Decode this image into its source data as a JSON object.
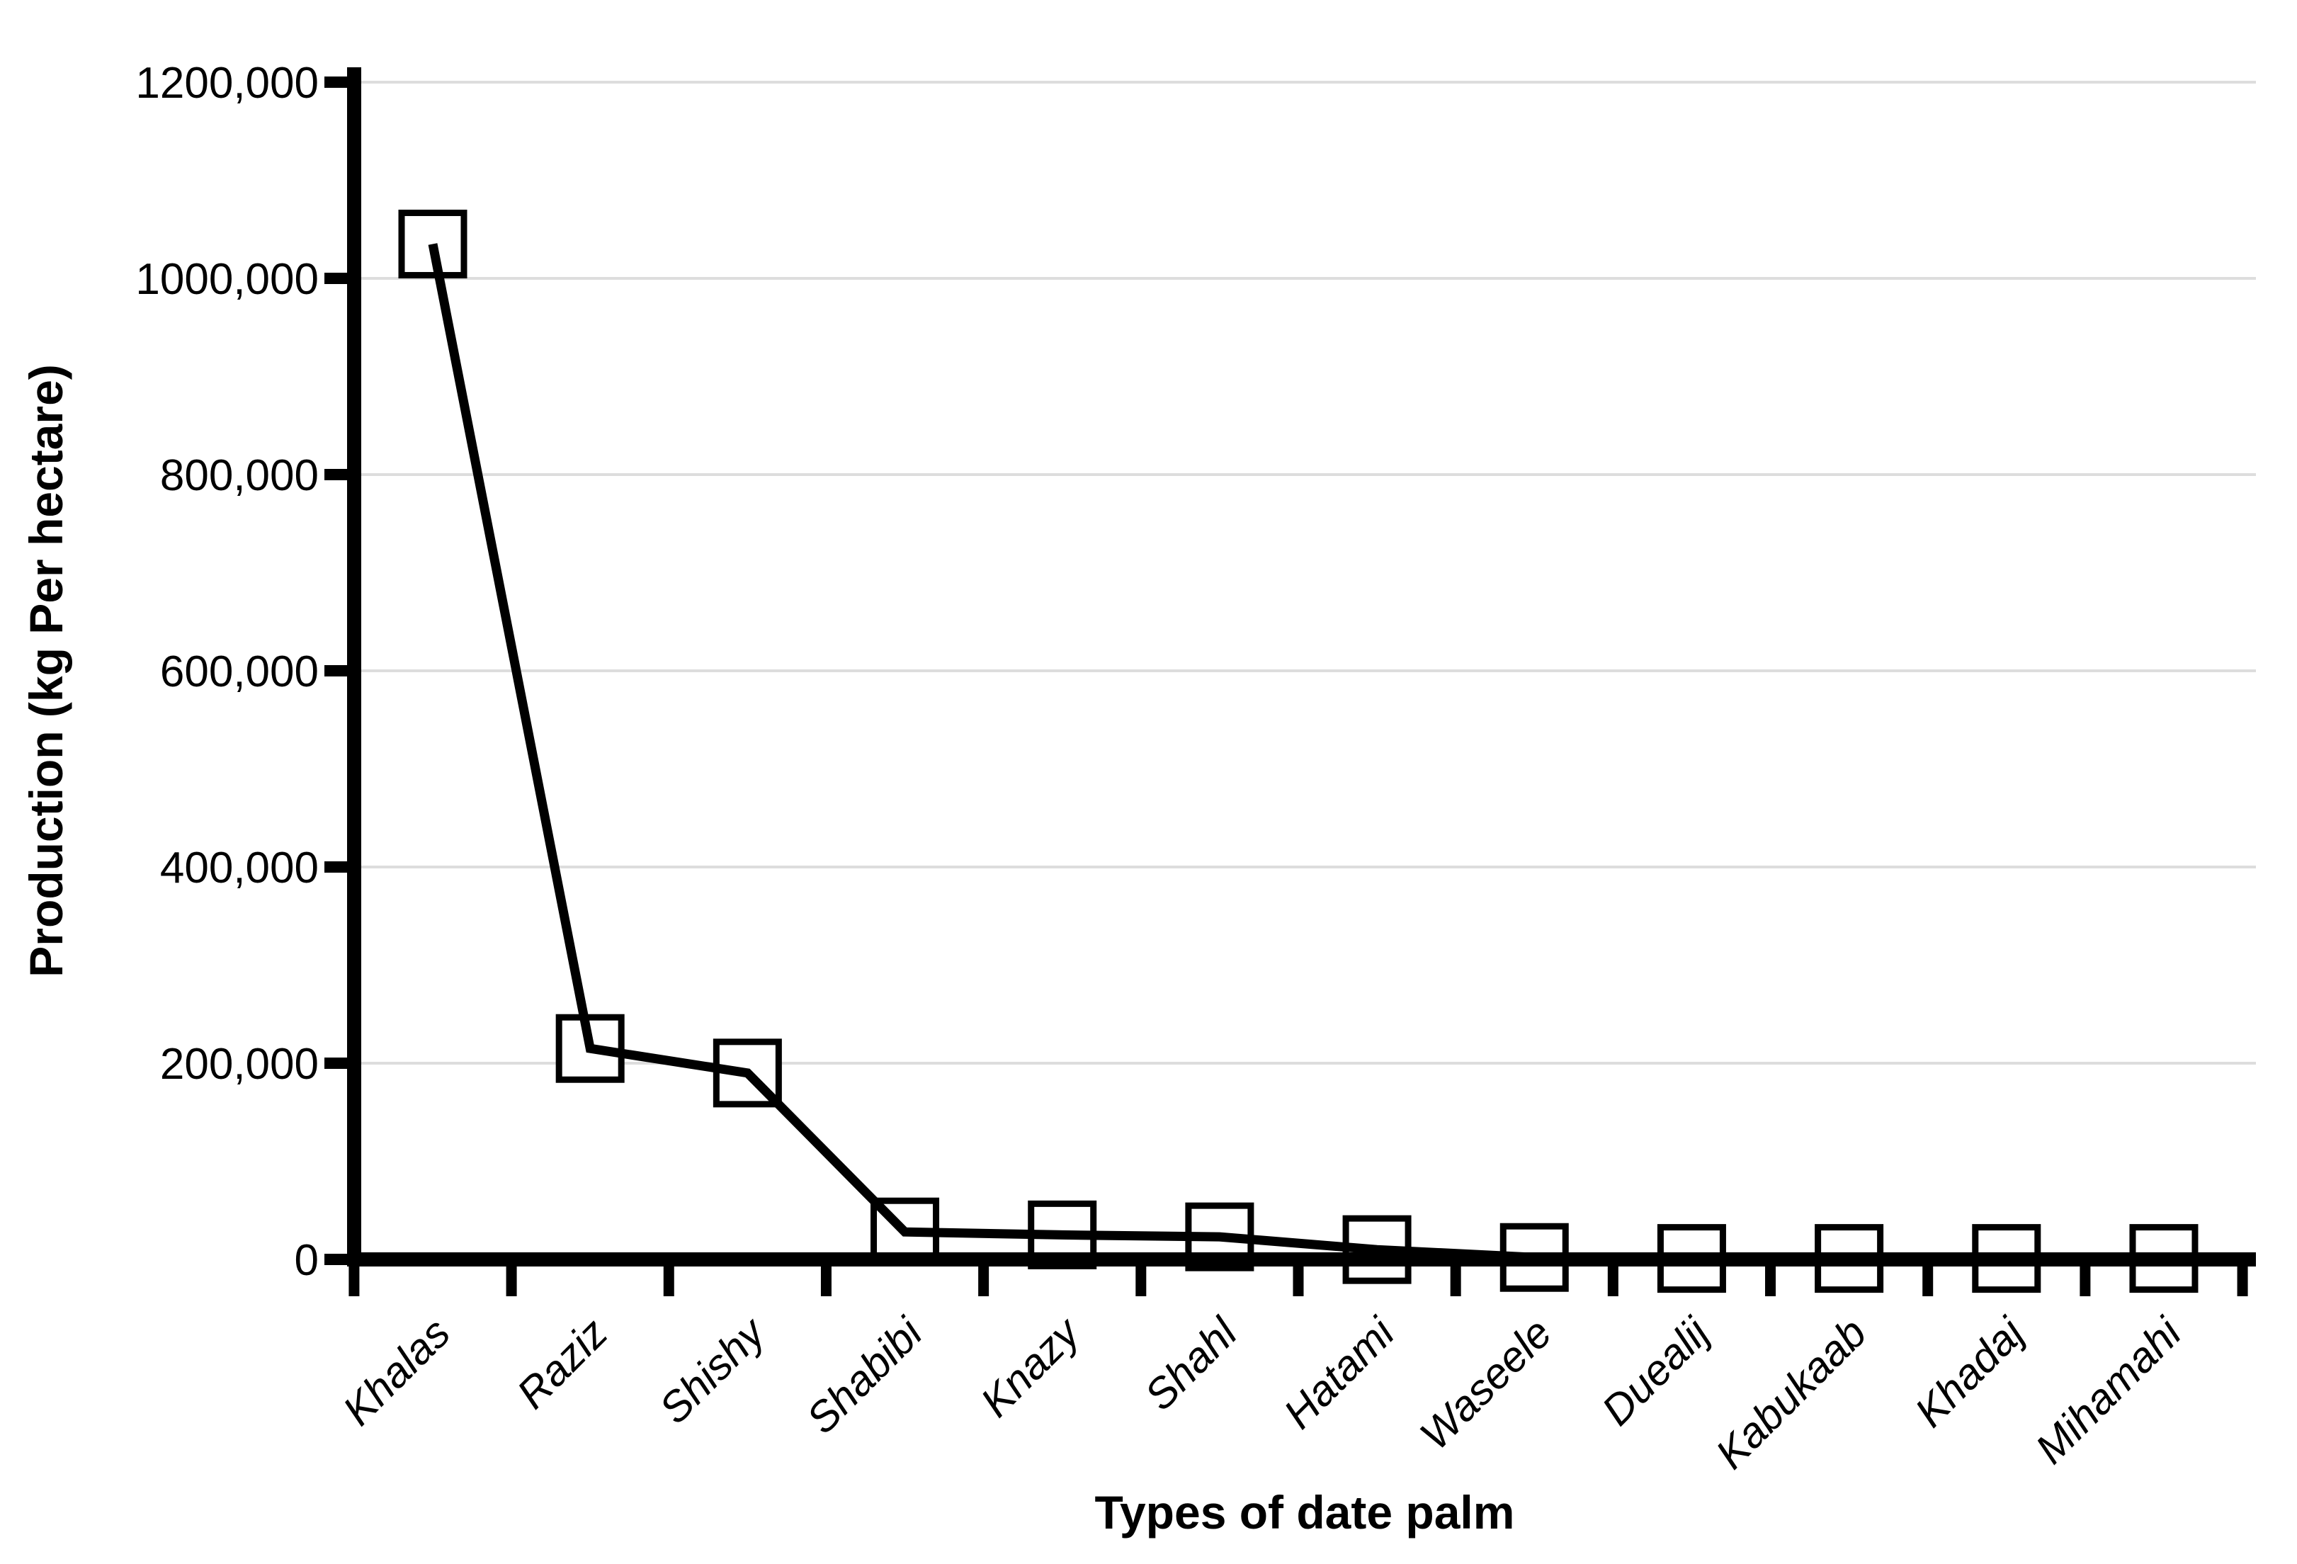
{
  "chart_data": {
    "type": "line",
    "categories": [
      "Khalas",
      "Raziz",
      "Shishy",
      "Shabibi",
      "Knazy",
      "Shahl",
      "Hatami",
      "Waseele",
      "Duealij",
      "Kabukaab",
      "Khadaj",
      "Mihamahi"
    ],
    "values": [
      1035000,
      215000,
      190000,
      28000,
      25000,
      23000,
      10000,
      2000,
      1000,
      1000,
      1000,
      1000
    ],
    "title": "",
    "xlabel": "Types of date palm",
    "ylabel": "Production (kg Per hectare)",
    "ylim": [
      0,
      1200000
    ],
    "ytick_step": 200000,
    "ytick_labels": [
      "0",
      "200,000",
      "400,000",
      "600,000",
      "800,000",
      "1000,000",
      "1200,000"
    ],
    "grid": "horizontal-only",
    "legend": "none",
    "marker_shape": "open-square",
    "colors": {
      "line": "#000000",
      "marker_stroke": "#000000",
      "marker_fill": "#ffffff",
      "axis": "#000000",
      "gridline": "#dddddd",
      "text": "#000000",
      "background": "#ffffff"
    }
  }
}
